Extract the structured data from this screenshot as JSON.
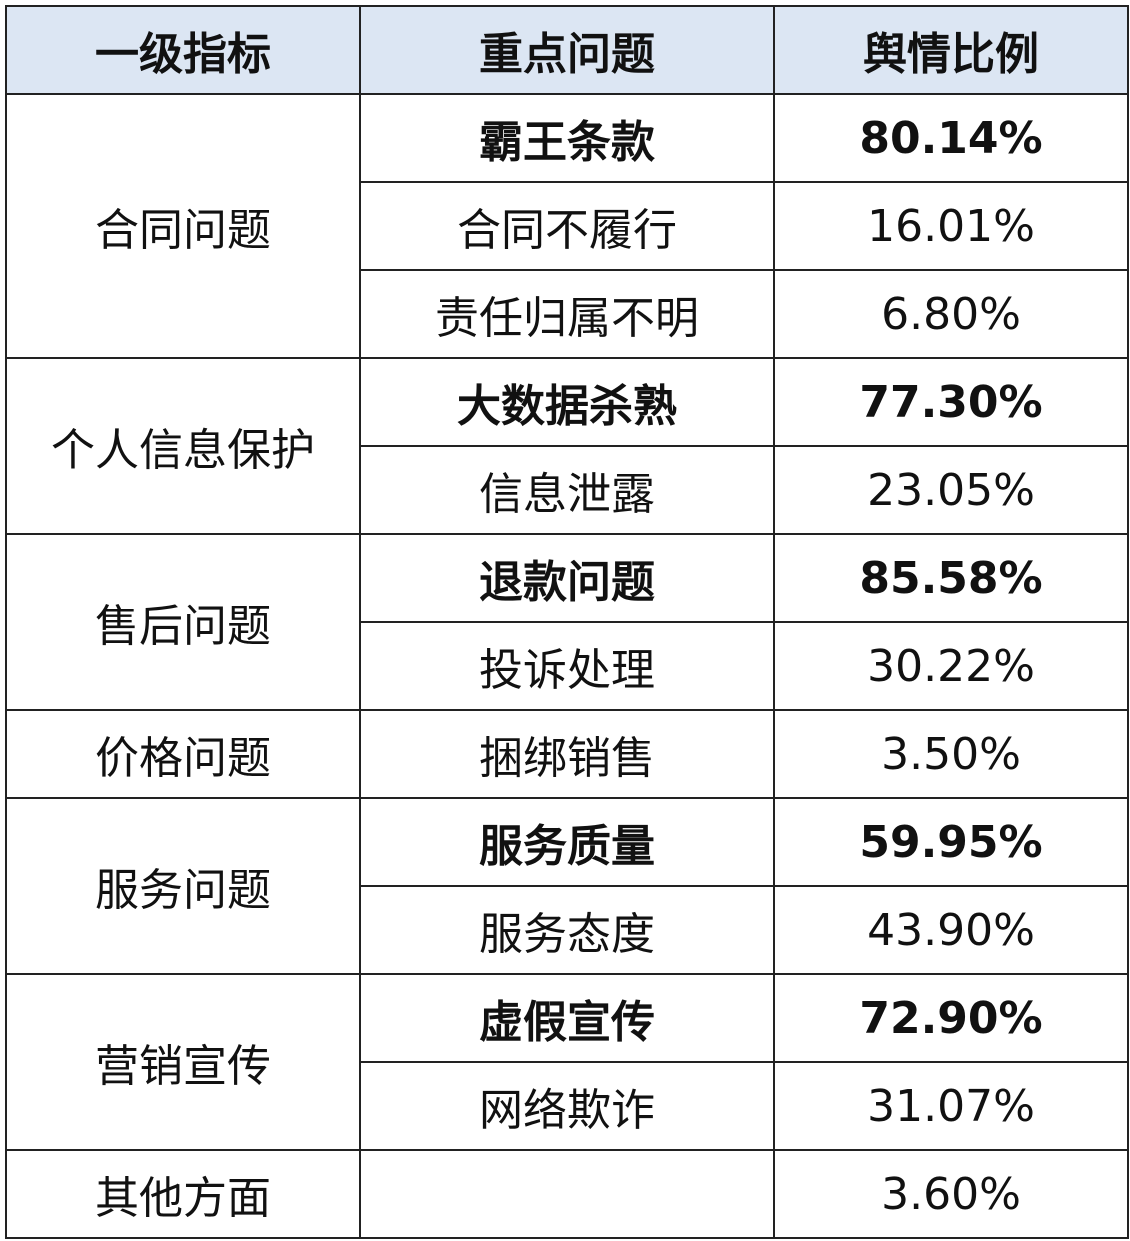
{
  "header_bg": "#dce6f3",
  "chart_data": {
    "type": "table",
    "columns": [
      "一级指标",
      "重点问题",
      "舆情比例"
    ],
    "groups": [
      {
        "category": "合同问题",
        "items": [
          {
            "issue": "霸王条款",
            "ratio": "80.14%",
            "bold": true
          },
          {
            "issue": "合同不履行",
            "ratio": "16.01%",
            "bold": false
          },
          {
            "issue": "责任归属不明",
            "ratio": "6.80%",
            "bold": false
          }
        ]
      },
      {
        "category": "个人信息保护",
        "items": [
          {
            "issue": "大数据杀熟",
            "ratio": "77.30%",
            "bold": true
          },
          {
            "issue": "信息泄露",
            "ratio": "23.05%",
            "bold": false
          }
        ]
      },
      {
        "category": "售后问题",
        "items": [
          {
            "issue": "退款问题",
            "ratio": "85.58%",
            "bold": true
          },
          {
            "issue": "投诉处理",
            "ratio": "30.22%",
            "bold": false
          }
        ]
      },
      {
        "category": "价格问题",
        "items": [
          {
            "issue": "捆绑销售",
            "ratio": "3.50%",
            "bold": false
          }
        ]
      },
      {
        "category": "服务问题",
        "items": [
          {
            "issue": "服务质量",
            "ratio": "59.95%",
            "bold": true
          },
          {
            "issue": "服务态度",
            "ratio": "43.90%",
            "bold": false
          }
        ]
      },
      {
        "category": "营销宣传",
        "items": [
          {
            "issue": "虚假宣传",
            "ratio": "72.90%",
            "bold": true
          },
          {
            "issue": "网络欺诈",
            "ratio": "31.07%",
            "bold": false
          }
        ]
      },
      {
        "category": "其他方面",
        "items": [
          {
            "issue": "",
            "ratio": "3.60%",
            "bold": false
          }
        ]
      }
    ]
  }
}
